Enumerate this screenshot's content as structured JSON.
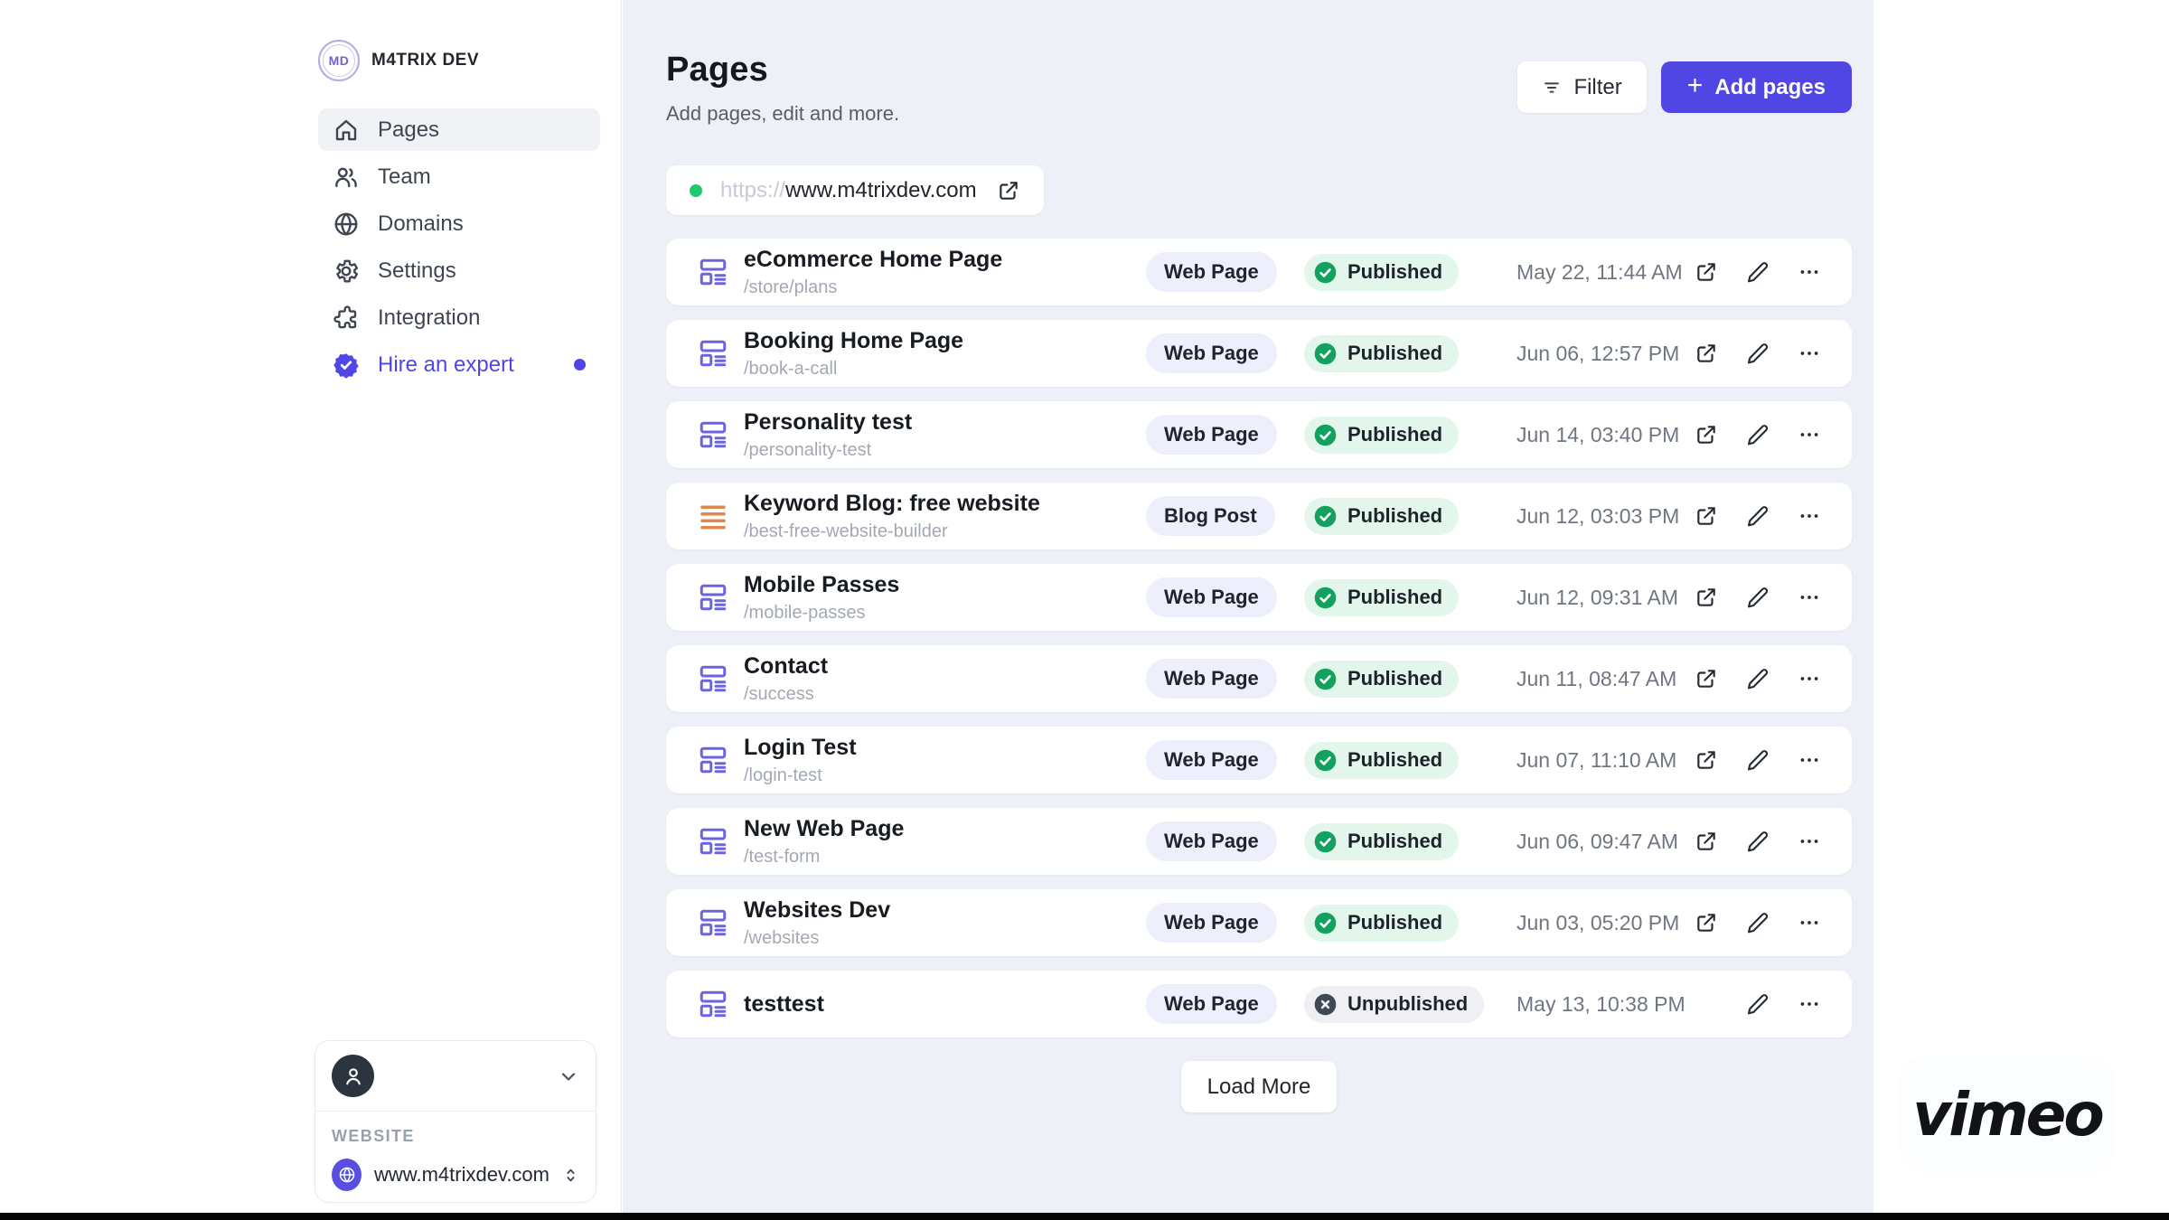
{
  "brand": {
    "initials": "MD",
    "name": "M4TRIX DEV"
  },
  "sidebar": {
    "items": [
      {
        "label": "Pages",
        "icon": "home-icon",
        "active": true
      },
      {
        "label": "Team",
        "icon": "team-icon",
        "active": false
      },
      {
        "label": "Domains",
        "icon": "globe-icon",
        "active": false
      },
      {
        "label": "Settings",
        "icon": "settings-icon",
        "active": false
      },
      {
        "label": "Integration",
        "icon": "integration-icon",
        "active": false
      },
      {
        "label": "Hire an expert",
        "icon": "expert-badge-icon",
        "active": false,
        "accent": true,
        "dot": true
      }
    ],
    "account": {
      "website_label": "WEBSITE",
      "website_value": "www.m4trixdev.com"
    }
  },
  "header": {
    "title": "Pages",
    "subtitle": "Add pages, edit and more.",
    "filter_label": "Filter",
    "add_pages_label": "Add pages",
    "add_pages_plus": "+"
  },
  "url_bar": {
    "protocol": "https://",
    "domain": "www.m4trixdev.com"
  },
  "pages": [
    {
      "title": "eCommerce Home Page",
      "path": "/store/plans",
      "type": "Web Page",
      "status": "Published",
      "date": "May 22, 11:44 AM",
      "actions": [
        "open",
        "edit",
        "more"
      ]
    },
    {
      "title": "Booking Home Page",
      "path": "/book-a-call",
      "type": "Web Page",
      "status": "Published",
      "date": "Jun 06, 12:57 PM",
      "actions": [
        "open",
        "edit",
        "more"
      ]
    },
    {
      "title": "Personality test",
      "path": "/personality-test",
      "type": "Web Page",
      "status": "Published",
      "date": "Jun 14, 03:40 PM",
      "actions": [
        "open",
        "edit",
        "more"
      ]
    },
    {
      "title": "Keyword Blog: free website",
      "path": "/best-free-website-builder",
      "type": "Blog Post",
      "status": "Published",
      "date": "Jun 12, 03:03 PM",
      "actions": [
        "open",
        "edit",
        "more"
      ]
    },
    {
      "title": "Mobile Passes",
      "path": "/mobile-passes",
      "type": "Web Page",
      "status": "Published",
      "date": "Jun 12, 09:31 AM",
      "actions": [
        "open",
        "edit",
        "more"
      ]
    },
    {
      "title": "Contact",
      "path": "/success",
      "type": "Web Page",
      "status": "Published",
      "date": "Jun 11, 08:47 AM",
      "actions": [
        "open",
        "edit",
        "more"
      ]
    },
    {
      "title": "Login Test",
      "path": "/login-test",
      "type": "Web Page",
      "status": "Published",
      "date": "Jun 07, 11:10 AM",
      "actions": [
        "open",
        "edit",
        "more"
      ]
    },
    {
      "title": "New Web Page",
      "path": "/test-form",
      "type": "Web Page",
      "status": "Published",
      "date": "Jun 06, 09:47 AM",
      "actions": [
        "open",
        "edit",
        "more"
      ]
    },
    {
      "title": "Websites Dev",
      "path": "/websites",
      "type": "Web Page",
      "status": "Published",
      "date": "Jun 03, 05:20 PM",
      "actions": [
        "open",
        "edit",
        "more"
      ]
    },
    {
      "title": "testtest",
      "path": "",
      "type": "Web Page",
      "status": "Unpublished",
      "date": "May 13, 10:38 PM",
      "actions": [
        "edit",
        "more"
      ]
    }
  ],
  "footer": {
    "load_more_label": "Load More"
  },
  "watermark": {
    "text": "vimeo"
  },
  "colors": {
    "accent": "#5046e4",
    "main_background": "#edf0f7",
    "published_green": "#12a15e",
    "unpublished_gray": "#3f4854",
    "web_page_icon_purple": "#6c63e0",
    "blog_post_icon_orange": "#dd8a4e",
    "url_dot_green": "#1ec96a"
  }
}
